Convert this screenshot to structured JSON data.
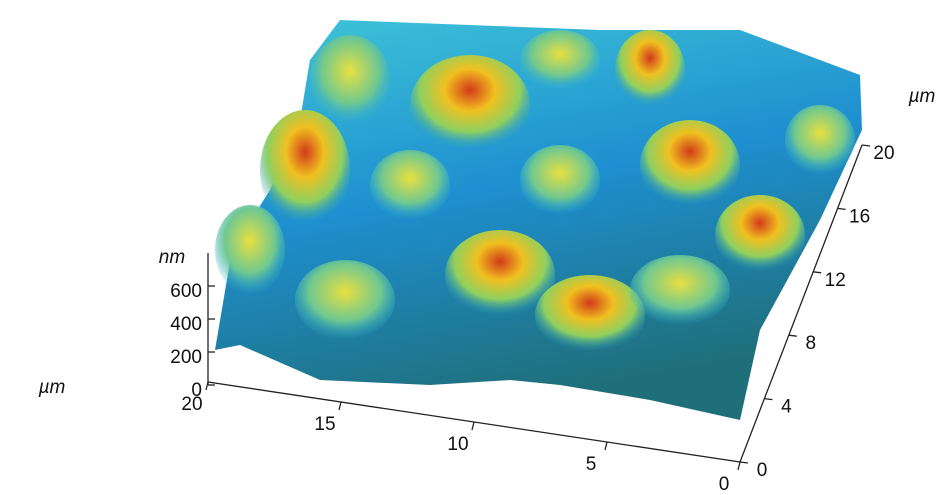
{
  "chart_data": {
    "type": "surface",
    "x_label": "µm",
    "y_label": "µm",
    "z_label": "nm",
    "xlim": [
      0,
      20
    ],
    "xticks": [
      0,
      5,
      10,
      15,
      20
    ],
    "ylim": [
      0,
      20
    ],
    "yticks": [
      0,
      4,
      8,
      12,
      16,
      20
    ],
    "zlim": [
      0,
      800
    ],
    "zticks": [
      0,
      200,
      400,
      600
    ]
  }
}
